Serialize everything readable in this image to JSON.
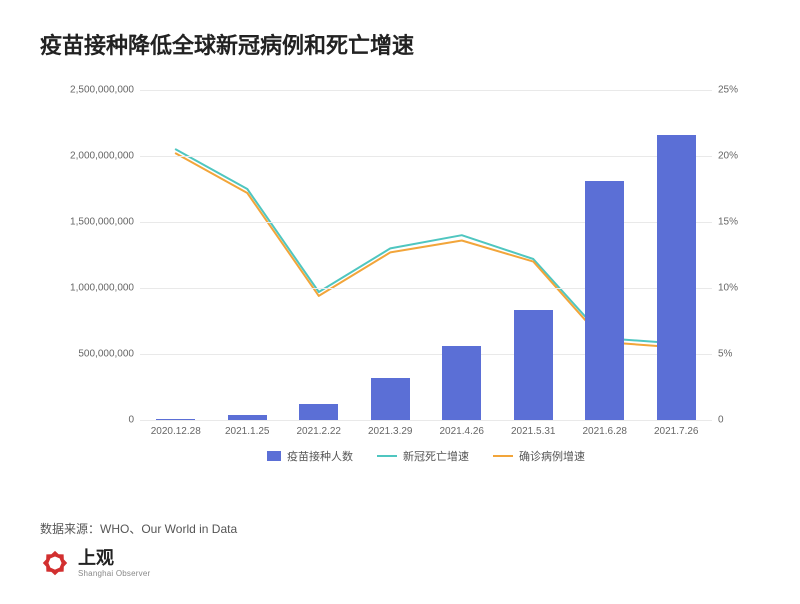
{
  "title": "疫苗接种降低全球新冠病例和死亡增速",
  "source": "数据来源：WHO、Our World in Data",
  "brand": {
    "cn": "上观",
    "en": "Shanghai Observer",
    "logo_color": "#d22f2f"
  },
  "chart": {
    "type": "bar+line",
    "background_color": "#ffffff",
    "grid_color": "#e9e9e9",
    "axis_label_color": "#666666",
    "axis_label_fontsize": 10,
    "categories": [
      "2020.12.28",
      "2021.1.25",
      "2021.2.22",
      "2021.3.29",
      "2021.4.26",
      "2021.5.31",
      "2021.6.28",
      "2021.7.26"
    ],
    "y_left": {
      "min": 0,
      "max": 2500000000,
      "step": 500000000,
      "tick_labels": [
        "0",
        "500,000,000",
        "1,000,000,000",
        "1,500,000,000",
        "2,000,000,000",
        "2,500,000,000"
      ]
    },
    "y_right": {
      "min": 0,
      "max": 25,
      "step": 5,
      "tick_labels": [
        "0",
        "5%",
        "10%",
        "15%",
        "20%",
        "25%"
      ]
    },
    "bars": {
      "label": "疫苗接种人数",
      "color": "#5b6fd6",
      "width_frac": 0.55,
      "values": [
        6000000,
        40000000,
        120000000,
        320000000,
        560000000,
        830000000,
        1810000000,
        2160000000
      ]
    },
    "lines": [
      {
        "label": "新冠死亡增速",
        "color": "#4fc6c0",
        "width": 2,
        "values_pct": [
          20.5,
          17.5,
          9.7,
          13.0,
          14.0,
          12.2,
          6.2,
          5.8
        ]
      },
      {
        "label": "确诊病例增速",
        "color": "#f2a53a",
        "width": 2,
        "values_pct": [
          20.2,
          17.2,
          9.4,
          12.7,
          13.6,
          12.0,
          5.9,
          5.5
        ]
      }
    ],
    "legend": {
      "items": [
        {
          "type": "rect",
          "color": "#5b6fd6",
          "label": "疫苗接种人数"
        },
        {
          "type": "line",
          "color": "#4fc6c0",
          "label": "新冠死亡增速"
        },
        {
          "type": "line",
          "color": "#f2a53a",
          "label": "确诊病例增速"
        }
      ]
    }
  }
}
